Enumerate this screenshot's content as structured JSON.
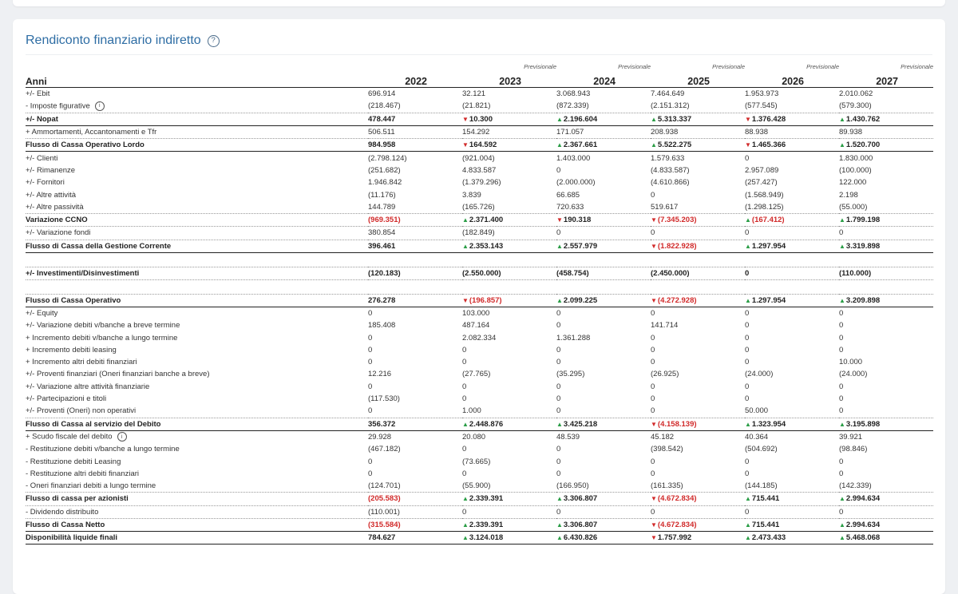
{
  "title": "Rendiconto finanziario indiretto",
  "header": {
    "label": "Anni",
    "years": [
      "2022",
      "2023",
      "2024",
      "2025",
      "2026",
      "2027"
    ],
    "forecast_label": "Previsionale"
  },
  "colors": {
    "accent": "#2e6da4",
    "positive": "#2a9d46",
    "negative": "#d12a2a"
  },
  "rows": [
    {
      "label": "+/- Ebit",
      "style": "normal",
      "border": "none",
      "values": [
        {
          "text": "696.914"
        },
        {
          "text": "32.121"
        },
        {
          "text": "3.068.943"
        },
        {
          "text": "7.464.649"
        },
        {
          "text": "1.953.973"
        },
        {
          "text": "2.010.062"
        }
      ]
    },
    {
      "label": "- Imposte figurative",
      "info": true,
      "style": "normal",
      "border": "dotted",
      "values": [
        {
          "text": "(218.467)"
        },
        {
          "text": "(21.821)"
        },
        {
          "text": "(872.339)"
        },
        {
          "text": "(2.151.312)"
        },
        {
          "text": "(577.545)"
        },
        {
          "text": "(579.300)"
        }
      ]
    },
    {
      "label": "+/- Nopat",
      "style": "bold",
      "border": "solid",
      "values": [
        {
          "text": "478.447"
        },
        {
          "text": "10.300",
          "trend": "down"
        },
        {
          "text": "2.196.604",
          "trend": "up"
        },
        {
          "text": "5.313.337",
          "trend": "up"
        },
        {
          "text": "1.376.428",
          "trend": "down"
        },
        {
          "text": "1.430.762",
          "trend": "up"
        }
      ]
    },
    {
      "label": "+ Ammortamenti, Accantonamenti e Tfr",
      "style": "normal",
      "border": "dotted",
      "values": [
        {
          "text": "506.511"
        },
        {
          "text": "154.292"
        },
        {
          "text": "171.057"
        },
        {
          "text": "208.938"
        },
        {
          "text": "88.938"
        },
        {
          "text": "89.938"
        }
      ]
    },
    {
      "label": "Flusso di Cassa Operativo Lordo",
      "style": "bold",
      "border": "solid",
      "values": [
        {
          "text": "984.958"
        },
        {
          "text": "164.592",
          "trend": "down"
        },
        {
          "text": "2.367.661",
          "trend": "up"
        },
        {
          "text": "5.522.275",
          "trend": "up"
        },
        {
          "text": "1.465.366",
          "trend": "down"
        },
        {
          "text": "1.520.700",
          "trend": "up"
        }
      ]
    },
    {
      "label": "+/- Clienti",
      "style": "normal",
      "border": "none",
      "values": [
        {
          "text": "(2.798.124)"
        },
        {
          "text": "(921.004)"
        },
        {
          "text": "1.403.000"
        },
        {
          "text": "1.579.633"
        },
        {
          "text": "0"
        },
        {
          "text": "1.830.000"
        }
      ]
    },
    {
      "label": "+/- Rimanenze",
      "style": "normal",
      "border": "none",
      "values": [
        {
          "text": "(251.682)"
        },
        {
          "text": "4.833.587"
        },
        {
          "text": "0"
        },
        {
          "text": "(4.833.587)"
        },
        {
          "text": "2.957.089"
        },
        {
          "text": "(100.000)"
        }
      ]
    },
    {
      "label": "+/- Fornitori",
      "style": "normal",
      "border": "none",
      "values": [
        {
          "text": "1.946.842"
        },
        {
          "text": "(1.379.296)"
        },
        {
          "text": "(2.000.000)"
        },
        {
          "text": "(4.610.866)"
        },
        {
          "text": "(257.427)"
        },
        {
          "text": "122.000"
        }
      ]
    },
    {
      "label": "+/- Altre attività",
      "style": "normal",
      "border": "none",
      "values": [
        {
          "text": "(11.176)"
        },
        {
          "text": "3.839"
        },
        {
          "text": "66.685"
        },
        {
          "text": "0"
        },
        {
          "text": "(1.568.949)"
        },
        {
          "text": "2.198"
        }
      ]
    },
    {
      "label": "+/- Altre passività",
      "style": "normal",
      "border": "dotted",
      "values": [
        {
          "text": "144.789"
        },
        {
          "text": "(165.726)"
        },
        {
          "text": "720.633"
        },
        {
          "text": "519.617"
        },
        {
          "text": "(1.298.125)"
        },
        {
          "text": "(55.000)"
        }
      ]
    },
    {
      "label": "Variazione CCNO",
      "style": "bold",
      "border": "dotted",
      "values": [
        {
          "text": "(969.351)",
          "neg": true
        },
        {
          "text": "2.371.400",
          "trend": "up"
        },
        {
          "text": "190.318",
          "trend": "down"
        },
        {
          "text": "(7.345.203)",
          "trend": "down",
          "neg": true
        },
        {
          "text": "(167.412)",
          "trend": "up",
          "neg": true
        },
        {
          "text": "1.799.198",
          "trend": "up"
        }
      ]
    },
    {
      "label": "+/- Variazione fondi",
      "style": "normal",
      "border": "dotted",
      "values": [
        {
          "text": "380.854"
        },
        {
          "text": "(182.849)"
        },
        {
          "text": "0"
        },
        {
          "text": "0"
        },
        {
          "text": "0"
        },
        {
          "text": "0"
        }
      ]
    },
    {
      "label": "Flusso di Cassa della Gestione Corrente",
      "style": "bold",
      "border": "solid",
      "values": [
        {
          "text": "396.461"
        },
        {
          "text": "2.353.143",
          "trend": "up"
        },
        {
          "text": "2.557.979",
          "trend": "up"
        },
        {
          "text": "(1.822.928)",
          "trend": "down",
          "neg": true
        },
        {
          "text": "1.297.954",
          "trend": "up"
        },
        {
          "text": "3.319.898",
          "trend": "up"
        }
      ]
    },
    {
      "gap": true,
      "border": "dotted"
    },
    {
      "label": "+/- Investimenti/Disinvestimenti",
      "style": "bold",
      "border": "dotted",
      "values": [
        {
          "text": "(120.183)"
        },
        {
          "text": "(2.550.000)"
        },
        {
          "text": "(458.754)"
        },
        {
          "text": "(2.450.000)"
        },
        {
          "text": "0"
        },
        {
          "text": "(110.000)"
        }
      ]
    },
    {
      "gap": true,
      "border": "dotted"
    },
    {
      "label": "Flusso di Cassa Operativo",
      "style": "bold",
      "border": "solid",
      "values": [
        {
          "text": "276.278"
        },
        {
          "text": "(196.857)",
          "trend": "down",
          "neg": true
        },
        {
          "text": "2.099.225",
          "trend": "up"
        },
        {
          "text": "(4.272.928)",
          "trend": "down",
          "neg": true
        },
        {
          "text": "1.297.954",
          "trend": "up"
        },
        {
          "text": "3.209.898",
          "trend": "up"
        }
      ]
    },
    {
      "label": "+/- Equity",
      "style": "normal",
      "border": "none",
      "values": [
        {
          "text": "0"
        },
        {
          "text": "103.000"
        },
        {
          "text": "0"
        },
        {
          "text": "0"
        },
        {
          "text": "0"
        },
        {
          "text": "0"
        }
      ]
    },
    {
      "label": "+/- Variazione debiti v/banche a breve termine",
      "style": "normal",
      "border": "none",
      "values": [
        {
          "text": "185.408"
        },
        {
          "text": "487.164"
        },
        {
          "text": "0"
        },
        {
          "text": "141.714"
        },
        {
          "text": "0"
        },
        {
          "text": "0"
        }
      ]
    },
    {
      "label": "+ Incremento debiti v/banche a lungo termine",
      "style": "normal",
      "border": "none",
      "values": [
        {
          "text": "0"
        },
        {
          "text": "2.082.334"
        },
        {
          "text": "1.361.288"
        },
        {
          "text": "0"
        },
        {
          "text": "0"
        },
        {
          "text": "0"
        }
      ]
    },
    {
      "label": "+ Incremento debiti leasing",
      "style": "normal",
      "border": "none",
      "values": [
        {
          "text": "0"
        },
        {
          "text": "0"
        },
        {
          "text": "0"
        },
        {
          "text": "0"
        },
        {
          "text": "0"
        },
        {
          "text": "0"
        }
      ]
    },
    {
      "label": "+ Incremento altri debiti finanziari",
      "style": "normal",
      "border": "none",
      "values": [
        {
          "text": "0"
        },
        {
          "text": "0"
        },
        {
          "text": "0"
        },
        {
          "text": "0"
        },
        {
          "text": "0"
        },
        {
          "text": "10.000"
        }
      ]
    },
    {
      "label": "+/- Proventi finanziari (Oneri finanziari banche a breve)",
      "style": "normal",
      "border": "none",
      "values": [
        {
          "text": "12.216"
        },
        {
          "text": "(27.765)"
        },
        {
          "text": "(35.295)"
        },
        {
          "text": "(26.925)"
        },
        {
          "text": "(24.000)"
        },
        {
          "text": "(24.000)"
        }
      ]
    },
    {
      "label": "+/- Variazione altre attività finanziarie",
      "style": "normal",
      "border": "none",
      "values": [
        {
          "text": "0"
        },
        {
          "text": "0"
        },
        {
          "text": "0"
        },
        {
          "text": "0"
        },
        {
          "text": "0"
        },
        {
          "text": "0"
        }
      ]
    },
    {
      "label": "+/- Partecipazioni e titoli",
      "style": "normal",
      "border": "none",
      "values": [
        {
          "text": "(117.530)"
        },
        {
          "text": "0"
        },
        {
          "text": "0"
        },
        {
          "text": "0"
        },
        {
          "text": "0"
        },
        {
          "text": "0"
        }
      ]
    },
    {
      "label": "+/- Proventi (Oneri) non operativi",
      "style": "normal",
      "border": "dotted",
      "values": [
        {
          "text": "0"
        },
        {
          "text": "1.000"
        },
        {
          "text": "0"
        },
        {
          "text": "0"
        },
        {
          "text": "50.000"
        },
        {
          "text": "0"
        }
      ]
    },
    {
      "label": "Flusso di Cassa al servizio del Debito",
      "style": "bold",
      "border": "solid",
      "values": [
        {
          "text": "356.372"
        },
        {
          "text": "2.448.876",
          "trend": "up"
        },
        {
          "text": "3.425.218",
          "trend": "up"
        },
        {
          "text": "(4.158.139)",
          "trend": "down",
          "neg": true
        },
        {
          "text": "1.323.954",
          "trend": "up"
        },
        {
          "text": "3.195.898",
          "trend": "up"
        }
      ]
    },
    {
      "label": "+ Scudo fiscale del debito",
      "info": true,
      "style": "normal",
      "border": "none",
      "values": [
        {
          "text": "29.928"
        },
        {
          "text": "20.080"
        },
        {
          "text": "48.539"
        },
        {
          "text": "45.182"
        },
        {
          "text": "40.364"
        },
        {
          "text": "39.921"
        }
      ]
    },
    {
      "label": "- Restituzione debiti v/banche a lungo termine",
      "style": "normal",
      "border": "none",
      "values": [
        {
          "text": "(467.182)"
        },
        {
          "text": "0"
        },
        {
          "text": "0"
        },
        {
          "text": "(398.542)"
        },
        {
          "text": "(504.692)"
        },
        {
          "text": "(98.846)"
        }
      ]
    },
    {
      "label": "- Restituzione debiti Leasing",
      "style": "normal",
      "border": "none",
      "values": [
        {
          "text": "0"
        },
        {
          "text": "(73.665)"
        },
        {
          "text": "0"
        },
        {
          "text": "0"
        },
        {
          "text": "0"
        },
        {
          "text": "0"
        }
      ]
    },
    {
      "label": "- Restituzione altri debiti finanziari",
      "style": "normal",
      "border": "none",
      "values": [
        {
          "text": "0"
        },
        {
          "text": "0"
        },
        {
          "text": "0"
        },
        {
          "text": "0"
        },
        {
          "text": "0"
        },
        {
          "text": "0"
        }
      ]
    },
    {
      "label": "- Oneri finanziari debiti a lungo termine",
      "style": "normal",
      "border": "dotted",
      "values": [
        {
          "text": "(124.701)"
        },
        {
          "text": "(55.900)"
        },
        {
          "text": "(166.950)"
        },
        {
          "text": "(161.335)"
        },
        {
          "text": "(144.185)"
        },
        {
          "text": "(142.339)"
        }
      ]
    },
    {
      "label": "Flusso di cassa per azionisti",
      "style": "bold",
      "border": "dotted",
      "values": [
        {
          "text": "(205.583)",
          "neg": true
        },
        {
          "text": "2.339.391",
          "trend": "up"
        },
        {
          "text": "3.306.807",
          "trend": "up"
        },
        {
          "text": "(4.672.834)",
          "trend": "down",
          "neg": true
        },
        {
          "text": "715.441",
          "trend": "up"
        },
        {
          "text": "2.994.634",
          "trend": "up"
        }
      ]
    },
    {
      "label": "- Dividendo distribuito",
      "style": "normal",
      "border": "dotted",
      "values": [
        {
          "text": "(110.001)"
        },
        {
          "text": "0"
        },
        {
          "text": "0"
        },
        {
          "text": "0"
        },
        {
          "text": "0"
        },
        {
          "text": "0"
        }
      ]
    },
    {
      "label": "Flusso di Cassa Netto",
      "style": "bold",
      "border": "solid",
      "values": [
        {
          "text": "(315.584)",
          "neg": true
        },
        {
          "text": "2.339.391",
          "trend": "up"
        },
        {
          "text": "3.306.807",
          "trend": "up"
        },
        {
          "text": "(4.672.834)",
          "trend": "down",
          "neg": true
        },
        {
          "text": "715.441",
          "trend": "up"
        },
        {
          "text": "2.994.634",
          "trend": "up"
        }
      ]
    },
    {
      "label": "Disponibilità liquide finali",
      "style": "bold",
      "border": "solid",
      "values": [
        {
          "text": "784.627"
        },
        {
          "text": "3.124.018",
          "trend": "up"
        },
        {
          "text": "6.430.826",
          "trend": "up"
        },
        {
          "text": "1.757.992",
          "trend": "down"
        },
        {
          "text": "2.473.433",
          "trend": "up"
        },
        {
          "text": "5.468.068",
          "trend": "up"
        }
      ]
    }
  ]
}
